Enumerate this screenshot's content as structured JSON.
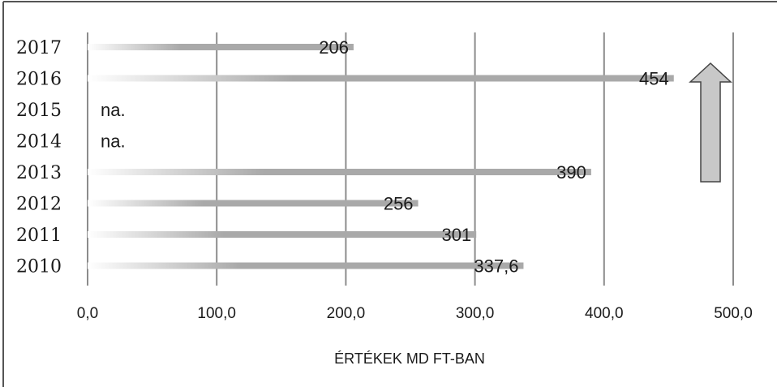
{
  "chart_data": {
    "type": "bar",
    "orientation": "horizontal",
    "categories": [
      "2017",
      "2016",
      "2015",
      "2014",
      "2013",
      "2012",
      "2011",
      "2010"
    ],
    "values": [
      206,
      454,
      null,
      null,
      390,
      256,
      301,
      337.6
    ],
    "value_labels": [
      "206",
      "454",
      "na.",
      "na.",
      "390",
      "256",
      "301",
      "337,6"
    ],
    "xticks": [
      "0,0",
      "100,0",
      "200,0",
      "300,0",
      "400,0",
      "500,0"
    ],
    "xtick_values": [
      0,
      100,
      200,
      300,
      400,
      500
    ],
    "xlim": [
      0,
      500
    ],
    "xlabel": "ÉRTÉKEK MD FT-BAN",
    "ylabel": "",
    "title": "",
    "grid": "vertical",
    "legend": "none",
    "annotation": "up-arrow",
    "colors": {
      "bar": "#a9a9a9",
      "bar_fade": "#ffffff",
      "grid": "#8c8c8c",
      "arrow_fill": "#c8c8c8",
      "arrow_stroke": "#444444",
      "frame": "#555555"
    }
  }
}
